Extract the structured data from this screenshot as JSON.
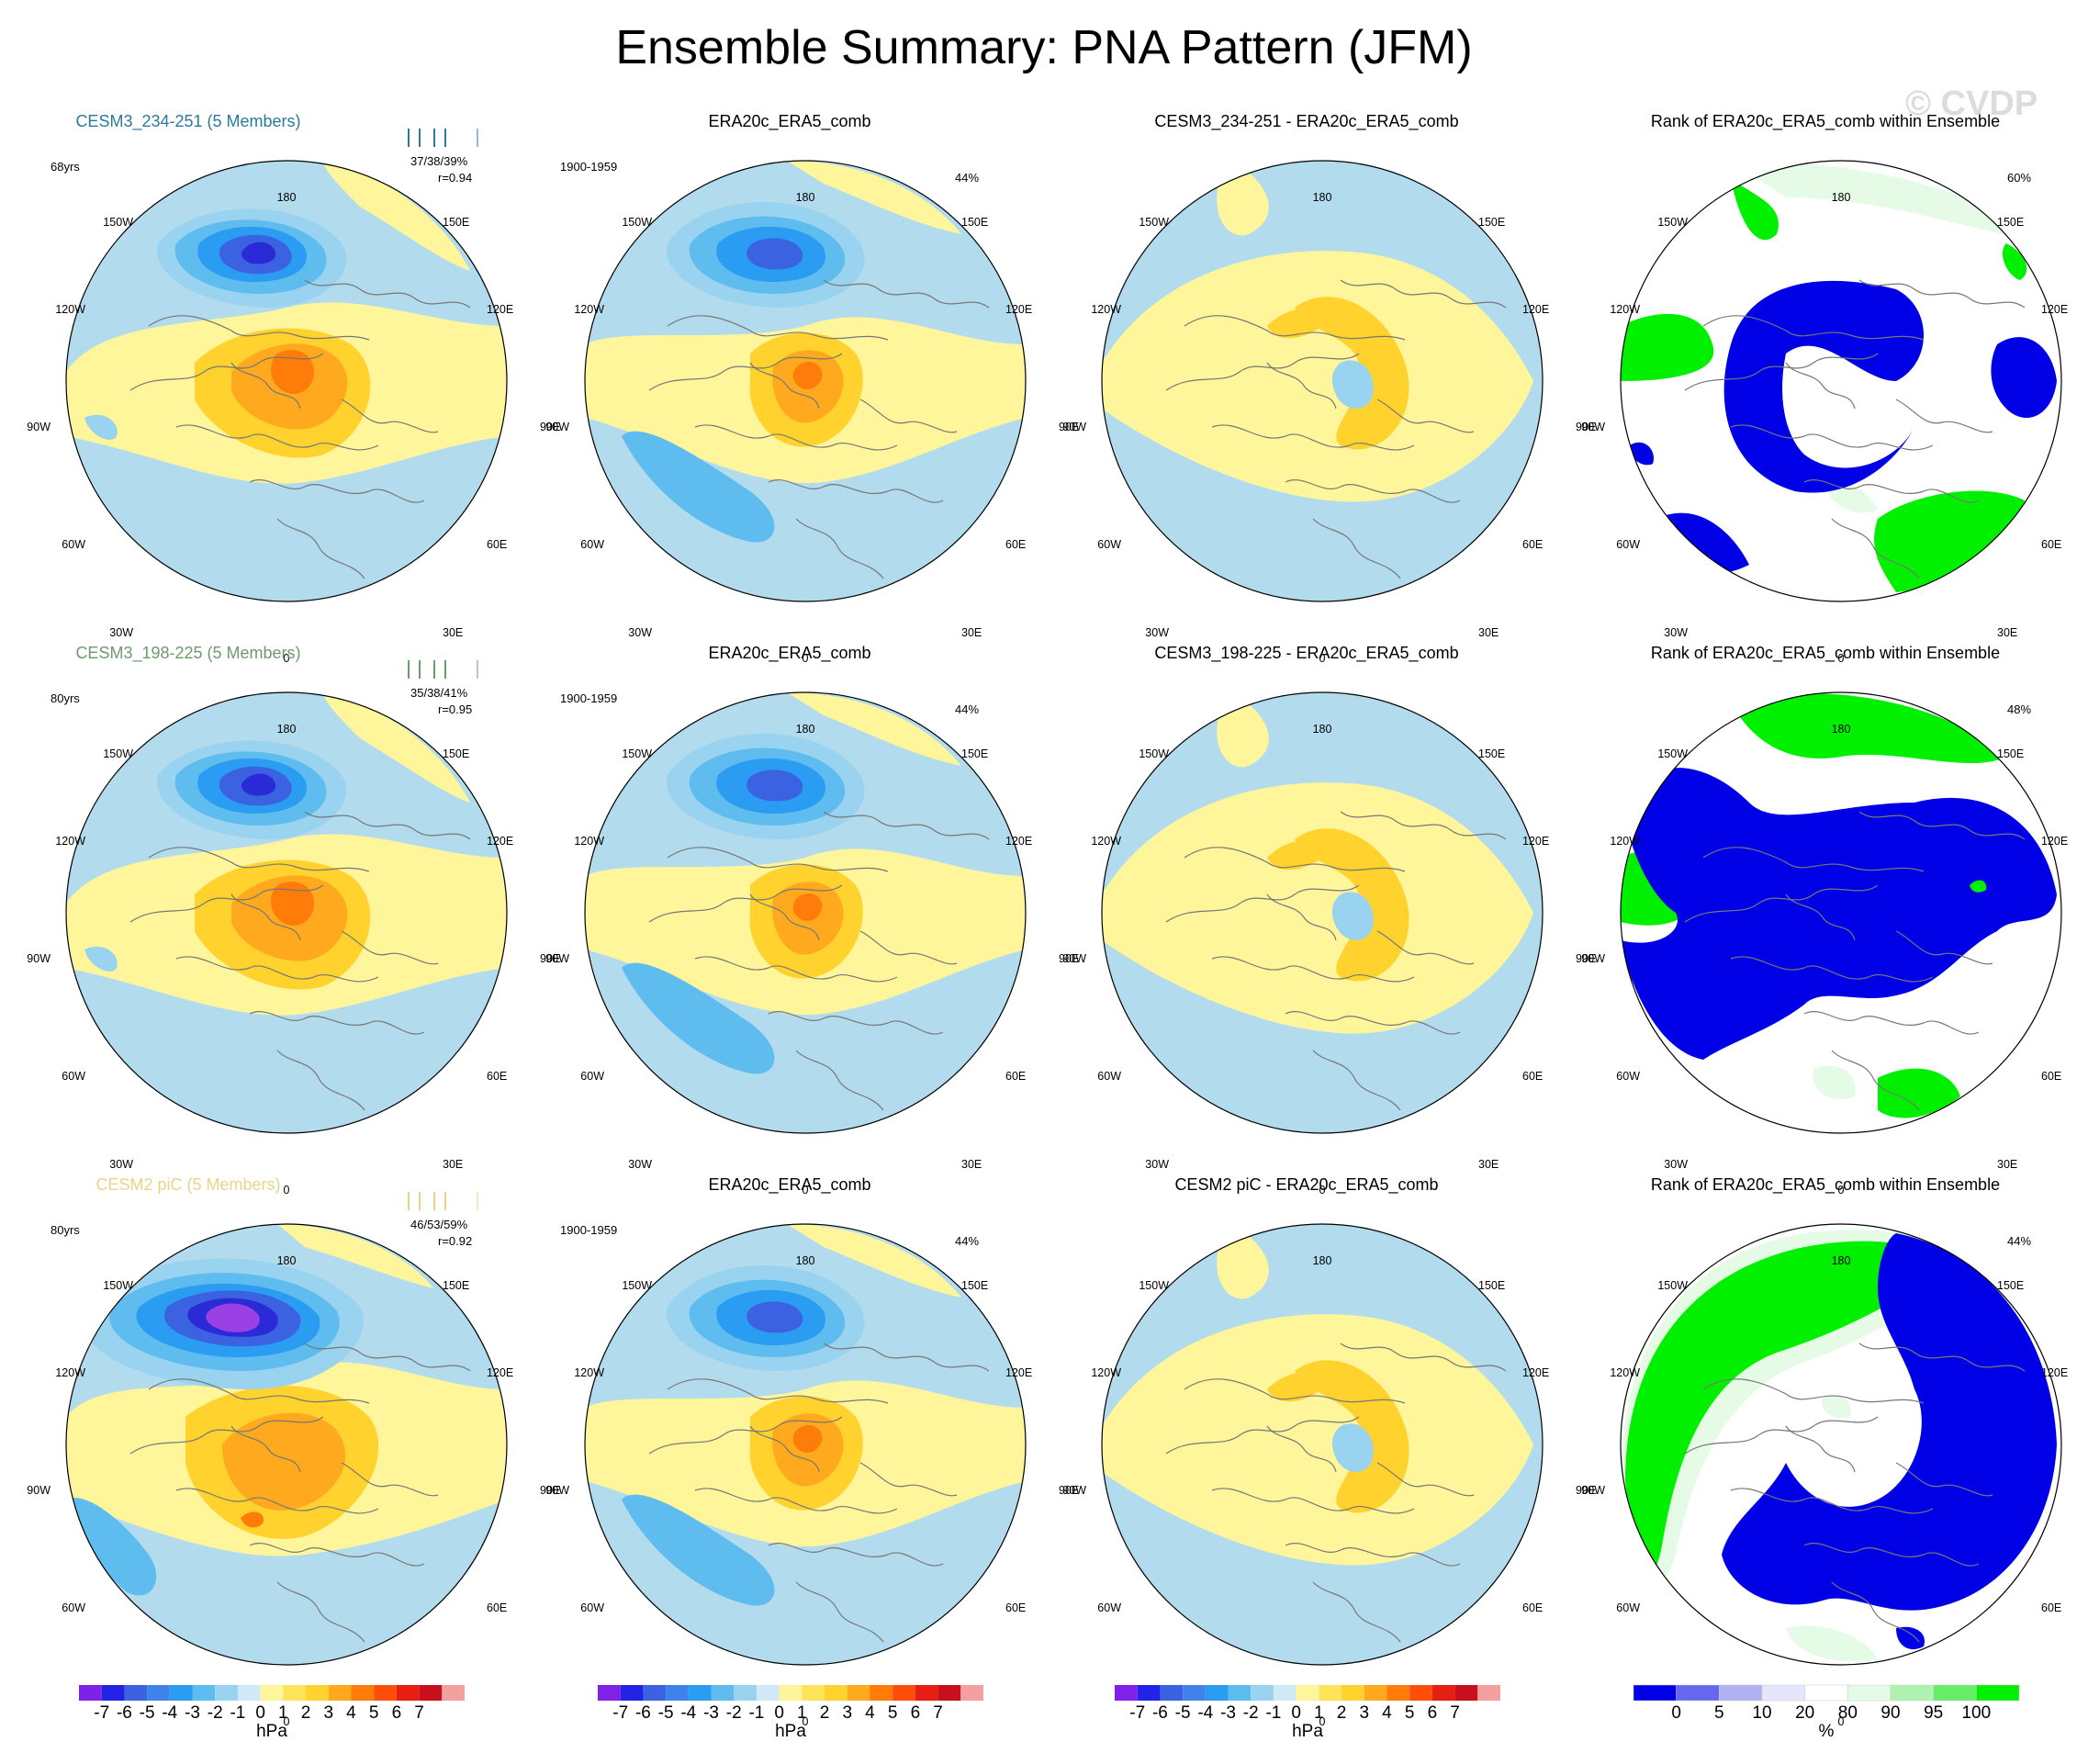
{
  "title": "Ensemble Summary: PNA Pattern (JFM)",
  "watermark": "© CVDP",
  "colors": {
    "ocean": "#b2dcee",
    "pos1": "#fff59b",
    "pos2": "#ffd22e",
    "pos3": "#ffaa1e",
    "pos4": "#ff7c0a",
    "neg1": "#9ad3ef",
    "neg2": "#5ebcee",
    "neg3": "#2a9cf2",
    "neg4": "#3b62e0",
    "neg5": "#2a2ad6",
    "neg6": "#9b40e4",
    "rank_low": "#0000e6",
    "rank_high": "#00f000",
    "rank_lightgreen": "#e5fbe5",
    "rank_lightblue": "#e5e5fb",
    "member_row1": "#2b7a9e",
    "member_row2": "#6e9a6e",
    "member_row3": "#e7d48a"
  },
  "axis_labels": {
    "top": "180",
    "bottom": "0",
    "left": "90W",
    "right": "90E",
    "ul_far": "150W",
    "ul_near": "120W",
    "ur_far": "150E",
    "ur_near": "120E",
    "ll_near": "60W",
    "ll_far": "30W",
    "lr_near": "60E",
    "lr_far": "30E"
  },
  "rows": [
    {
      "model_title": "CESM3_234-251 (5 Members)",
      "years": "68yrs",
      "pcts": "37/38/39%",
      "corr": "r=0.94",
      "obs_title": "ERA20c_ERA5_comb",
      "obs_period": "1900-1959",
      "obs_pct": "44%",
      "diff_title": "CESM3_234-251 - ERA20c_ERA5_comb",
      "rank_title": "Rank of ERA20c_ERA5_comb within Ensemble",
      "rank_pct": "60%"
    },
    {
      "model_title": "CESM3_198-225 (5 Members)",
      "years": "80yrs",
      "pcts": "35/38/41%",
      "corr": "r=0.95",
      "obs_title": "ERA20c_ERA5_comb",
      "obs_period": "1900-1959",
      "obs_pct": "44%",
      "diff_title": "CESM3_198-225 - ERA20c_ERA5_comb",
      "rank_title": "Rank of ERA20c_ERA5_comb within Ensemble",
      "rank_pct": "48%"
    },
    {
      "model_title": "CESM2 piC (5 Members)",
      "years": "80yrs",
      "pcts": "46/53/59%",
      "corr": "r=0.92",
      "obs_title": "ERA20c_ERA5_comb",
      "obs_period": "1900-1959",
      "obs_pct": "44%",
      "diff_title": "CESM2 piC - ERA20c_ERA5_comb",
      "rank_title": "Rank of ERA20c_ERA5_comb within Ensemble",
      "rank_pct": "44%"
    }
  ],
  "colorbar_hpa": {
    "colors": [
      "#7f21e6",
      "#2323e6",
      "#3b62e0",
      "#3f83ea",
      "#2a9cf2",
      "#5ebcee",
      "#9ad3ef",
      "#cfe9f6",
      "#fff59b",
      "#ffe35a",
      "#ffd22e",
      "#ffaa1e",
      "#ff7c0a",
      "#ff4e0a",
      "#e61e14",
      "#c80f1e",
      "#f5a0a0"
    ],
    "ticks": [
      "-7",
      "-6",
      "-5",
      "-4",
      "-3",
      "-2",
      "-1",
      "0",
      "1",
      "2",
      "3",
      "4",
      "5",
      "6",
      "7"
    ],
    "unit": "hPa"
  },
  "colorbar_rank": {
    "colors": [
      "#0000e6",
      "#6666ee",
      "#b0b0f2",
      "#e5e5fb",
      "#ffffff",
      "#e5fbe5",
      "#b0f2b0",
      "#66ee66",
      "#00f000"
    ],
    "ticks": [
      "0",
      "5",
      "10",
      "20",
      "80",
      "90",
      "95",
      "100"
    ],
    "unit": "%"
  }
}
